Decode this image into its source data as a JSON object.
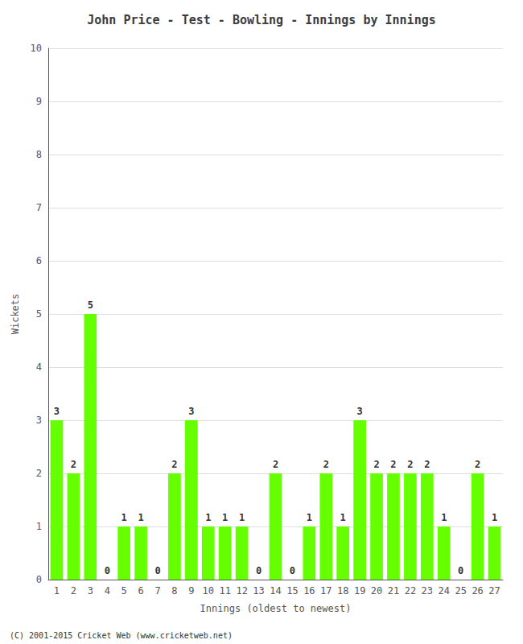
{
  "chart_data": {
    "type": "bar",
    "title": "John Price - Test - Bowling - Innings by Innings",
    "xlabel": "Innings (oldest to newest)",
    "ylabel": "Wickets",
    "categories": [
      "1",
      "2",
      "3",
      "4",
      "5",
      "6",
      "7",
      "8",
      "9",
      "10",
      "11",
      "12",
      "13",
      "14",
      "15",
      "16",
      "17",
      "18",
      "19",
      "20",
      "21",
      "22",
      "23",
      "24",
      "25",
      "26",
      "27"
    ],
    "values": [
      3,
      2,
      5,
      0,
      1,
      1,
      0,
      2,
      3,
      1,
      1,
      1,
      0,
      2,
      0,
      1,
      2,
      1,
      3,
      2,
      2,
      2,
      2,
      1,
      0,
      2,
      1
    ],
    "color": "#66ff00",
    "ylim": [
      0,
      10
    ],
    "yticks": [
      0,
      1,
      2,
      3,
      4,
      5,
      6,
      7,
      8,
      9,
      10
    ],
    "grid": true,
    "data_labels": true,
    "annotations": [
      "(C) 2001-2015 Cricket Web (www.cricketweb.net)"
    ]
  }
}
